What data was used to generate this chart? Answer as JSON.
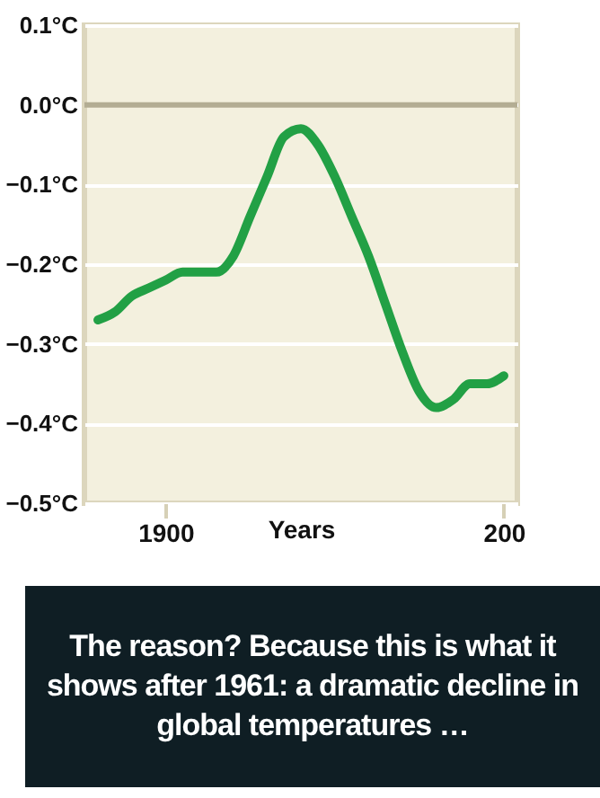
{
  "chart_data": {
    "type": "line",
    "xlabel": "Years",
    "categories": [
      null,
      null,
      null,
      null,
      "1900",
      null,
      null,
      null,
      null,
      null,
      null,
      null,
      null,
      null,
      null,
      null,
      null,
      null,
      null,
      null,
      null,
      null,
      null,
      null,
      "200"
    ],
    "series": [
      {
        "color": "#22a045",
        "values": [
          -0.27,
          -0.26,
          -0.24,
          -0.23,
          -0.22,
          -0.21,
          -0.21,
          -0.21,
          -0.19,
          -0.14,
          -0.09,
          -0.04,
          -0.03,
          -0.05,
          -0.09,
          -0.14,
          -0.19,
          -0.25,
          -0.31,
          -0.36,
          -0.38,
          -0.37,
          -0.35,
          -0.35,
          -0.34
        ]
      }
    ],
    "ylim": [
      -0.5,
      0.1
    ],
    "yticks": [
      {
        "value": 0.1,
        "label": "0.1°C"
      },
      {
        "value": 0,
        "label": "0.0°C"
      },
      {
        "value": -0.1,
        "label": "−0.1°C"
      },
      {
        "value": -0.2,
        "label": "−0.2°C"
      },
      {
        "value": -0.3,
        "label": "−0.3°C"
      },
      {
        "value": -0.4,
        "label": "−0.4°C"
      },
      {
        "value": -0.5,
        "label": "−0.5°C"
      }
    ],
    "grid": "y",
    "marker": "none",
    "line_style": "solid",
    "ref_lines": [
      {
        "axis": "y",
        "value": 0,
        "color": "#b3ad93"
      }
    ],
    "annotations": [
      "The reason? Because this is what it shows after 1961: a dramatic decline in global temperatures …"
    ]
  }
}
